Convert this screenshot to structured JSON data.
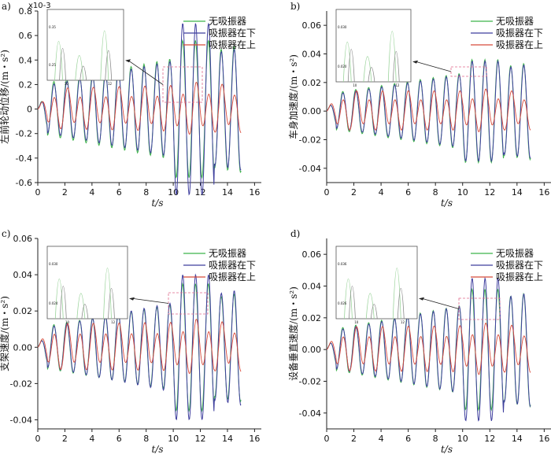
{
  "chart_data": [
    {
      "type": "line",
      "panel": "a)",
      "xlabel": "t/s",
      "ylabel": "左前轮动位移/(m・s²)",
      "exponent_label": "x10-3",
      "xlim": [
        0,
        16.5
      ],
      "ylim": [
        -0.6,
        0.8
      ],
      "x_ticks": [
        0,
        2,
        4,
        6,
        8,
        10,
        12,
        14,
        16
      ],
      "y_ticks": [
        -0.6,
        -0.4,
        -0.2,
        0,
        0.2,
        0.4,
        0.6,
        0.8
      ],
      "x_tick_labels": [
        "0",
        "2",
        "4",
        "6",
        "8",
        "10",
        "12",
        "14",
        "16"
      ],
      "y_tick_labels": [
        "-0.6",
        "-0.4",
        "-0.2",
        "0",
        "0.2",
        "0.4",
        "0.6",
        "0.8"
      ],
      "legend": [
        "无吸振器",
        "吸振器在下",
        "吸振器在上"
      ],
      "series": [
        {
          "name": "无吸振器",
          "color": "#3cb34a",
          "env_start": 0.2,
          "env_end": 0.52,
          "env_mid": 0.56
        },
        {
          "name": "吸振器在下",
          "color": "#3f3f9e",
          "env_start": 0.18,
          "env_end": 0.5,
          "env_mid": 0.7
        },
        {
          "name": "吸振器在上",
          "color": "#d84a3a",
          "env_start": 0.13,
          "env_end": 0.16,
          "env_mid": 0.17
        }
      ],
      "inset_ticks": [
        "0.35",
        "0.25",
        "10",
        "12"
      ]
    },
    {
      "type": "line",
      "panel": "b)",
      "xlabel": "t/s",
      "ylabel": "车身加速度/(m・s²)",
      "xlim": [
        0,
        16.5
      ],
      "ylim": [
        -0.05,
        0.07
      ],
      "x_ticks": [
        0,
        2,
        4,
        6,
        8,
        10,
        12,
        14,
        16
      ],
      "y_ticks": [
        -0.04,
        -0.02,
        0,
        0.02,
        0.04,
        0.06
      ],
      "x_tick_labels": [
        "0",
        "2",
        "4",
        "6",
        "8",
        "10",
        "12",
        "14",
        "16"
      ],
      "y_tick_labels": [
        "-0.04",
        "-0.02",
        "0.00",
        "0.02",
        "0.04",
        "0.06"
      ],
      "legend": [
        "无吸振器",
        "吸振器在下",
        "吸振器在上"
      ],
      "series": [
        {
          "name": "无吸振器",
          "color": "#3cb34a",
          "env_start": 0.012,
          "env_end": 0.034,
          "env_mid": 0.036
        },
        {
          "name": "吸振器在下",
          "color": "#3f3f9e",
          "env_start": 0.011,
          "env_end": 0.033,
          "env_mid": 0.035
        },
        {
          "name": "吸振器在上",
          "color": "#d84a3a",
          "env_start": 0.011,
          "env_end": 0.011,
          "env_mid": 0.012
        }
      ],
      "inset_ticks": [
        "0.030",
        "0.020",
        "10",
        "12"
      ]
    },
    {
      "type": "line",
      "panel": "c)",
      "xlabel": "t/s",
      "ylabel": "支架速度/(m・s²)",
      "xlim": [
        0,
        16.5
      ],
      "ylim": [
        -0.045,
        0.06
      ],
      "x_ticks": [
        0,
        2,
        4,
        6,
        8,
        10,
        12,
        14,
        16
      ],
      "y_ticks": [
        -0.04,
        -0.02,
        0,
        0.02,
        0.04,
        0.06
      ],
      "x_tick_labels": [
        "0",
        "2",
        "4",
        "6",
        "8",
        "10",
        "12",
        "14",
        "16"
      ],
      "y_tick_labels": [
        "-0.04",
        "-0.02",
        "0.00",
        "0.02",
        "0.04",
        "0.06"
      ],
      "legend": [
        "无吸振器",
        "吸振器在下",
        "吸振器在上"
      ],
      "series": [
        {
          "name": "无吸振器",
          "color": "#3cb34a",
          "env_start": 0.011,
          "env_end": 0.03,
          "env_mid": 0.035
        },
        {
          "name": "吸振器在下",
          "color": "#3f3f9e",
          "env_start": 0.01,
          "env_end": 0.032,
          "env_mid": 0.04
        },
        {
          "name": "吸振器在上",
          "color": "#d84a3a",
          "env_start": 0.01,
          "env_end": 0.011,
          "env_mid": 0.012
        }
      ],
      "inset_ticks": [
        "0.030",
        "0.024",
        "10",
        "12"
      ]
    },
    {
      "type": "line",
      "panel": "d)",
      "xlabel": "t/s",
      "ylabel": "设备垂直速度/(m・s²)",
      "xlim": [
        0,
        16.5
      ],
      "ylim": [
        -0.05,
        0.07
      ],
      "x_ticks": [
        0,
        2,
        4,
        6,
        8,
        10,
        12,
        14,
        16
      ],
      "y_ticks": [
        -0.04,
        -0.02,
        0,
        0.02,
        0.04,
        0.06
      ],
      "x_tick_labels": [
        "0",
        "2",
        "4",
        "6",
        "8",
        "10",
        "12",
        "14",
        "16"
      ],
      "y_tick_labels": [
        "-0.04",
        "-0.02",
        "0.00",
        "0.02",
        "0.04",
        "0.06"
      ],
      "legend": [
        "无吸振器",
        "吸振器在下",
        "吸振器在上"
      ],
      "series": [
        {
          "name": "无吸振器",
          "color": "#3cb34a",
          "env_start": 0.012,
          "env_end": 0.036,
          "env_mid": 0.038
        },
        {
          "name": "吸振器在下",
          "color": "#3f3f9e",
          "env_start": 0.011,
          "env_end": 0.036,
          "env_mid": 0.045
        },
        {
          "name": "吸振器在上",
          "color": "#d84a3a",
          "env_start": 0.011,
          "env_end": 0.012,
          "env_mid": 0.013
        }
      ],
      "inset_ticks": [
        "0.036",
        "0.026",
        "10",
        "12"
      ]
    }
  ]
}
